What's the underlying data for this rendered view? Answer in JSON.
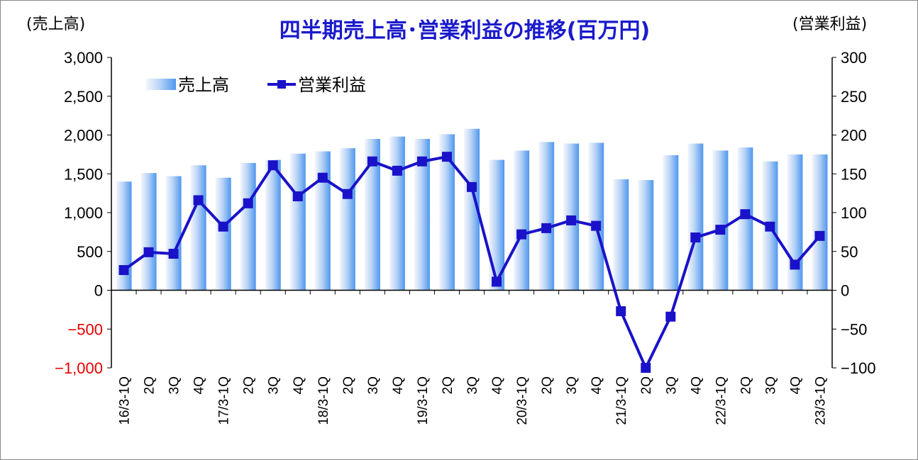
{
  "chart_data": {
    "type": "bar",
    "title": "四半期売上高･営業利益の推移(百万円)",
    "ylabel": "(売上高)",
    "y2label": "(営業利益)",
    "ylim": [
      -1000,
      3000
    ],
    "y2lim": [
      -100,
      300
    ],
    "yticks": [
      "3,000",
      "2,500",
      "2,000",
      "1,500",
      "1,000",
      "500",
      "0",
      "−500",
      "−1,000"
    ],
    "y2ticks": [
      "300",
      "250",
      "200",
      "150",
      "100",
      "50",
      "0",
      "−50",
      "−100"
    ],
    "categories": [
      "16/3-1Q",
      "2Q",
      "3Q",
      "4Q",
      "17/3-1Q",
      "2Q",
      "3Q",
      "4Q",
      "18/3-1Q",
      "2Q",
      "3Q",
      "4Q",
      "19/3-1Q",
      "2Q",
      "3Q",
      "4Q",
      "20/3-1Q",
      "2Q",
      "3Q",
      "4Q",
      "21/3-1Q",
      "2Q",
      "3Q",
      "4Q",
      "22/3-1Q",
      "2Q",
      "3Q",
      "4Q",
      "23/3-1Q"
    ],
    "series": [
      {
        "name": "売上高",
        "type": "bar",
        "axis": "left",
        "color": "#4f97ee",
        "values": [
          1400,
          1510,
          1470,
          1610,
          1450,
          1640,
          1680,
          1760,
          1790,
          1830,
          1950,
          1980,
          1950,
          2010,
          2080,
          1680,
          1800,
          1910,
          1890,
          1900,
          1430,
          1420,
          1740,
          1890,
          1800,
          1840,
          1660,
          1750,
          1750
        ]
      },
      {
        "name": "営業利益",
        "type": "line",
        "axis": "right",
        "color": "#1a12c8",
        "values": [
          26,
          49,
          47,
          116,
          82,
          112,
          161,
          121,
          145,
          124,
          166,
          154,
          166,
          172,
          133,
          11,
          72,
          80,
          90,
          83,
          -27,
          -100,
          -34,
          68,
          78,
          98,
          82,
          33,
          70
        ]
      }
    ],
    "grid": false,
    "legend_position": "top-left",
    "negative_tick_color": "#e60000"
  }
}
